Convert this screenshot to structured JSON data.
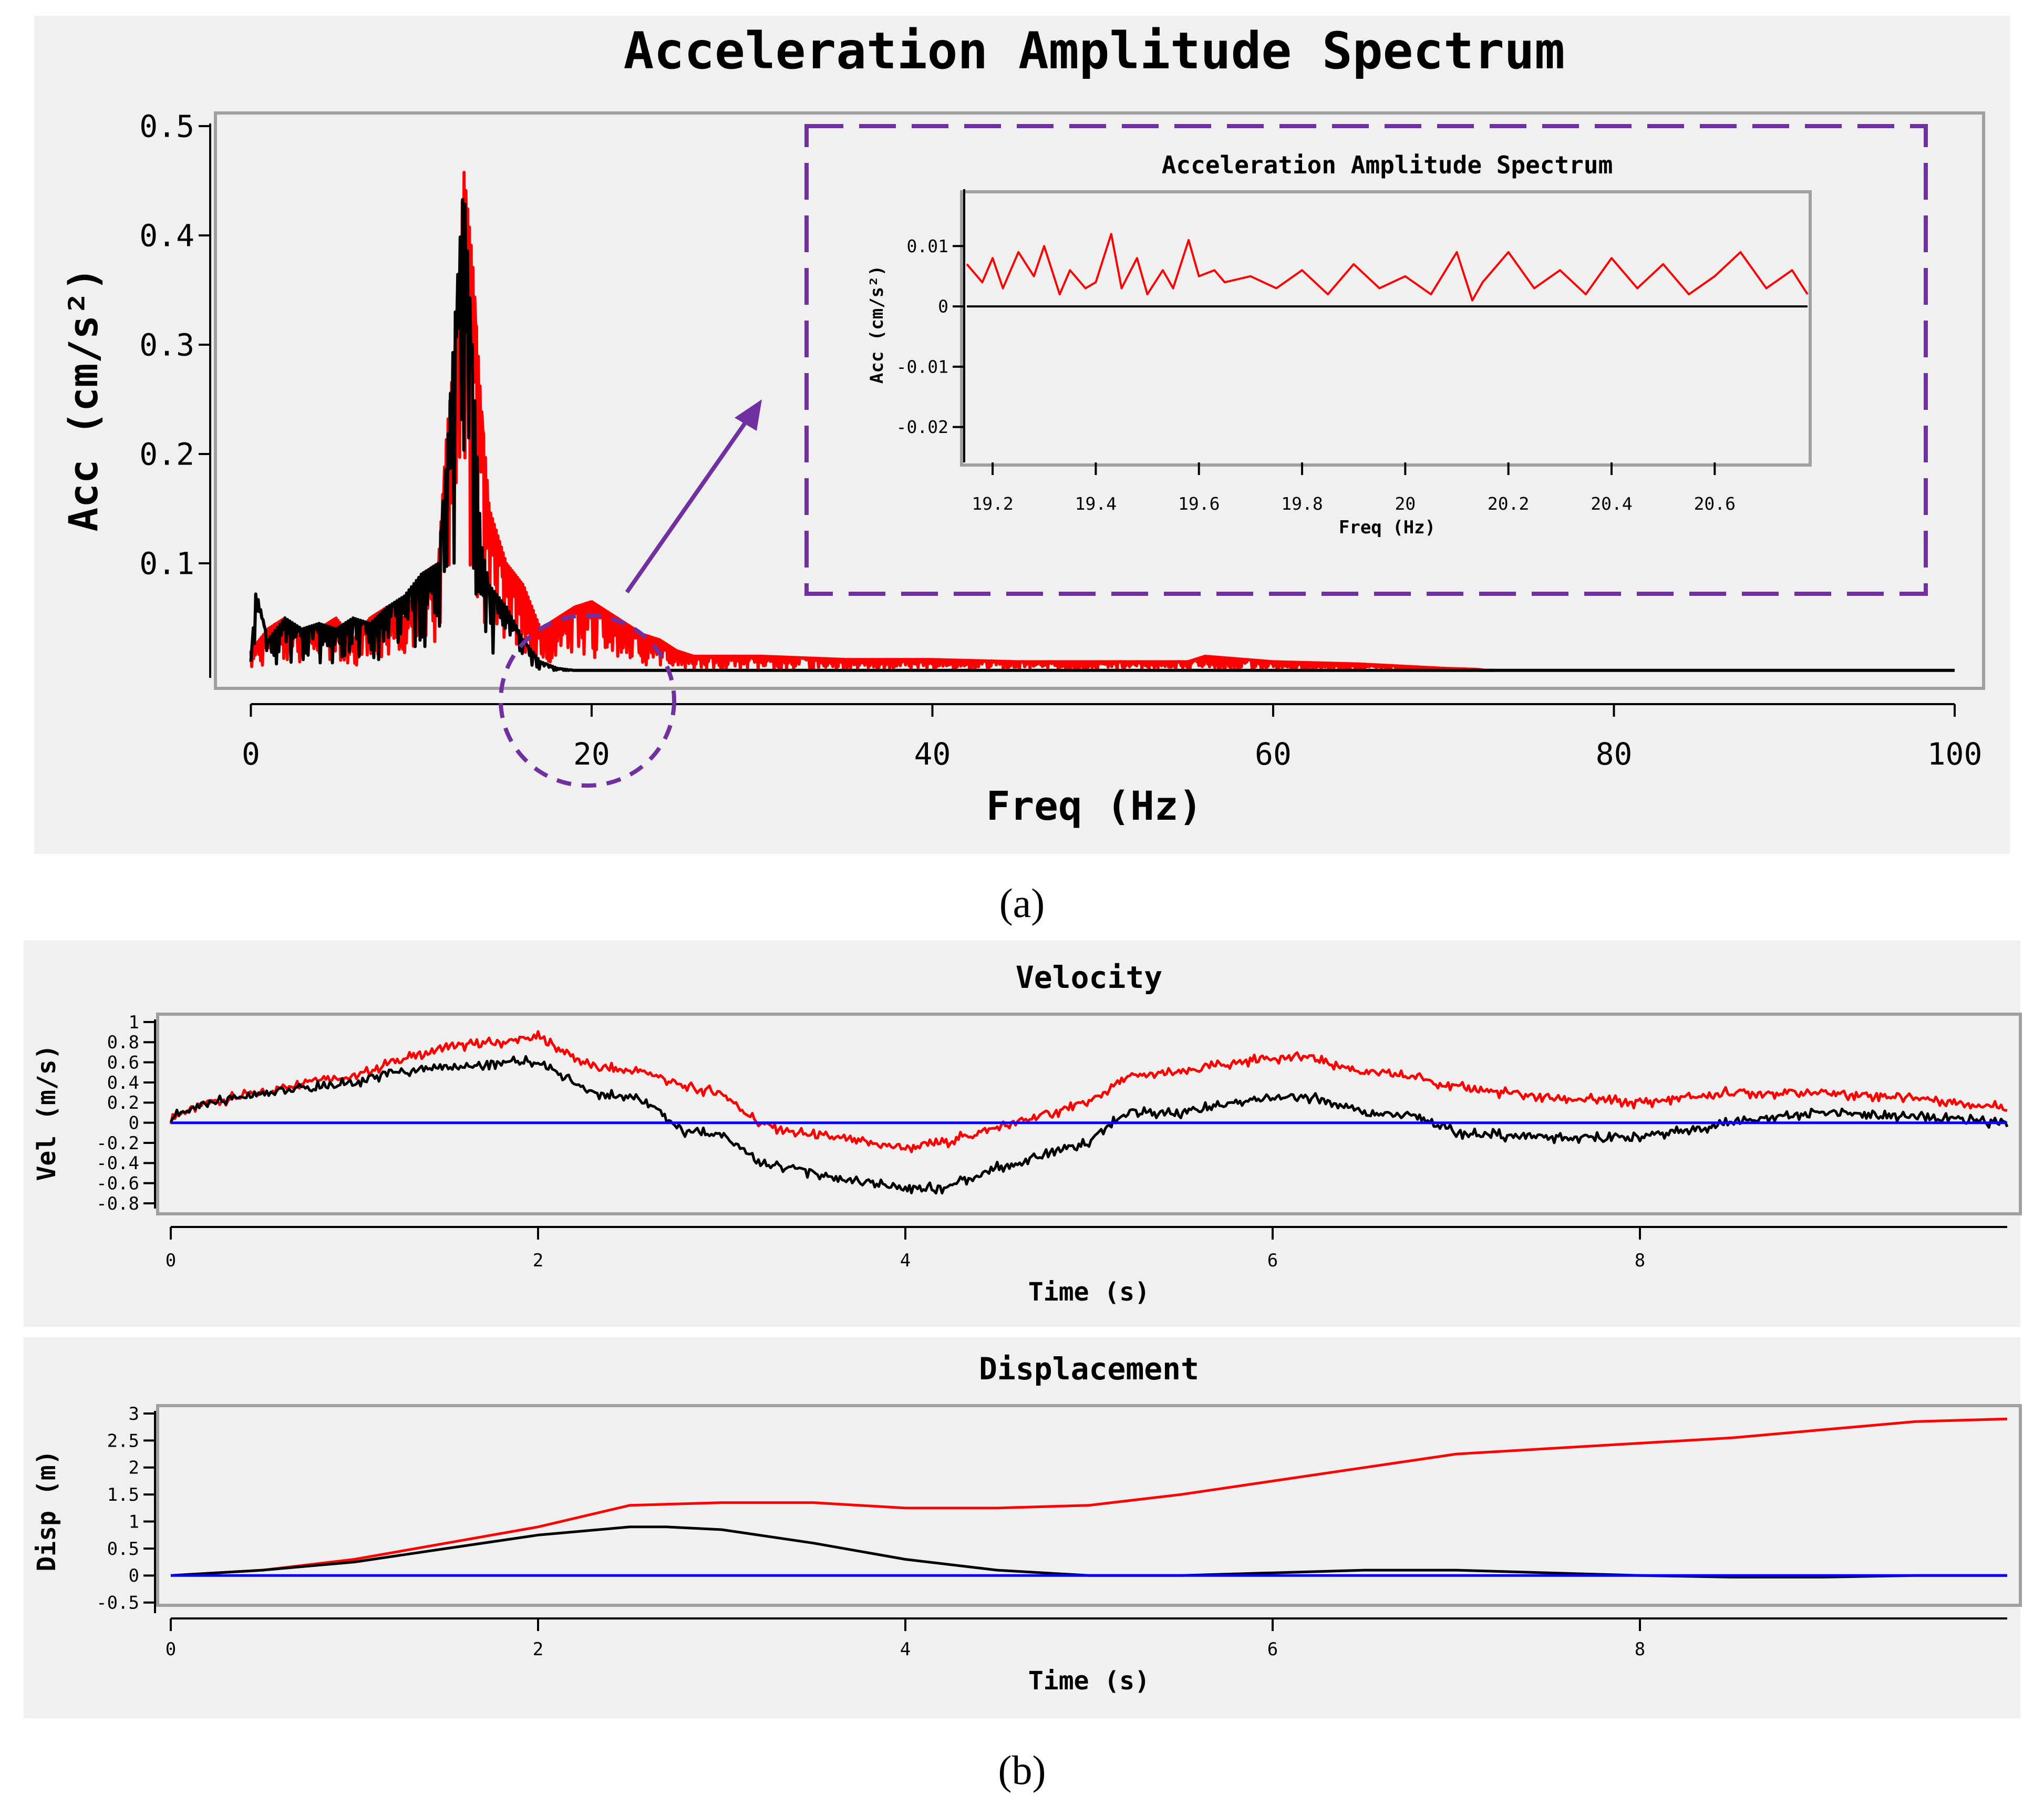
{
  "chart_data": [
    {
      "id": "spectrum",
      "type": "line",
      "title": "Acceleration Amplitude Spectrum",
      "xlabel": "Freq (Hz)",
      "ylabel": "Acc (cm/s²)",
      "xlim": [
        -1,
        100
      ],
      "ylim": [
        0,
        0.5
      ],
      "xticks": [
        "0",
        "20",
        "40",
        "60",
        "80",
        "100"
      ],
      "yticks": [
        "0.1",
        "0.2",
        "0.3",
        "0.4",
        "0.5"
      ],
      "series": [
        {
          "name": "red",
          "color": "#ff0000",
          "x": [
            0,
            1,
            2,
            3,
            4,
            5,
            6,
            7,
            8,
            9,
            10,
            11,
            11.5,
            12,
            12.5,
            13,
            13.5,
            14,
            15,
            16,
            17,
            18,
            19,
            20,
            21,
            22,
            23,
            24,
            25,
            26,
            30,
            35,
            40,
            45,
            50,
            55,
            56,
            60,
            65,
            70,
            72,
            73
          ],
          "y": [
            0.02,
            0.04,
            0.05,
            0.03,
            0.04,
            0.05,
            0.03,
            0.05,
            0.06,
            0.05,
            0.09,
            0.1,
            0.22,
            0.3,
            0.46,
            0.38,
            0.25,
            0.15,
            0.1,
            0.08,
            0.04,
            0.05,
            0.06,
            0.065,
            0.055,
            0.045,
            0.035,
            0.03,
            0.02,
            0.015,
            0.015,
            0.012,
            0.012,
            0.01,
            0.01,
            0.01,
            0.015,
            0.01,
            0.008,
            0.004,
            0.003,
            0.001
          ]
        },
        {
          "name": "black",
          "color": "#000000",
          "x": [
            0,
            0.3,
            1,
            2,
            3,
            4,
            5,
            6,
            7,
            8,
            9,
            10,
            11,
            11.5,
            12,
            12.5,
            13,
            13.5,
            14,
            15,
            16,
            17,
            18,
            19,
            20,
            25,
            30,
            40,
            50,
            60,
            70,
            80,
            90,
            100
          ],
          "y": [
            0.01,
            0.075,
            0.03,
            0.05,
            0.04,
            0.045,
            0.04,
            0.05,
            0.045,
            0.06,
            0.07,
            0.09,
            0.1,
            0.2,
            0.33,
            0.45,
            0.3,
            0.12,
            0.08,
            0.06,
            0.03,
            0.01,
            0.004,
            0.002,
            0.001,
            0.001,
            0.001,
            0.001,
            0.001,
            0.001,
            0.001,
            0.001,
            0.001,
            0.001
          ]
        }
      ]
    },
    {
      "id": "inset",
      "type": "line",
      "title": "Acceleration Amplitude Spectrum",
      "xlabel": "Freq (Hz)",
      "ylabel": "Acc (cm/s²)",
      "xlim": [
        19.15,
        20.78
      ],
      "ylim": [
        -0.025,
        0.019
      ],
      "xticks": [
        "19.2",
        "19.4",
        "19.6",
        "19.8",
        "20",
        "20.2",
        "20.4",
        "20.6"
      ],
      "yticks": [
        "0.01",
        "0",
        "-0.01",
        "-0.02"
      ],
      "series": [
        {
          "name": "red",
          "color": "#ff0000",
          "x": [
            19.15,
            19.18,
            19.2,
            19.22,
            19.25,
            19.28,
            19.3,
            19.33,
            19.35,
            19.38,
            19.4,
            19.43,
            19.45,
            19.48,
            19.5,
            19.53,
            19.55,
            19.58,
            19.6,
            19.63,
            19.65,
            19.7,
            19.75,
            19.8,
            19.85,
            19.9,
            19.95,
            20,
            20.05,
            20.1,
            20.13,
            20.15,
            20.2,
            20.25,
            20.3,
            20.35,
            20.4,
            20.45,
            20.5,
            20.55,
            20.6,
            20.65,
            20.7,
            20.75,
            20.78
          ],
          "y": [
            0.007,
            0.004,
            0.008,
            0.003,
            0.009,
            0.005,
            0.01,
            0.002,
            0.006,
            0.003,
            0.004,
            0.012,
            0.003,
            0.008,
            0.002,
            0.006,
            0.003,
            0.011,
            0.005,
            0.006,
            0.004,
            0.005,
            0.003,
            0.006,
            0.002,
            0.007,
            0.003,
            0.005,
            0.002,
            0.009,
            0.001,
            0.004,
            0.009,
            0.003,
            0.006,
            0.002,
            0.008,
            0.003,
            0.007,
            0.002,
            0.005,
            0.009,
            0.003,
            0.006,
            0.002
          ]
        },
        {
          "name": "black",
          "color": "#000000",
          "x": [
            19.15,
            20.78
          ],
          "y": [
            0,
            0
          ]
        }
      ]
    },
    {
      "id": "velocity",
      "type": "line",
      "title": "Velocity",
      "xlabel": "Time (s)",
      "ylabel": "Vel (m/s)",
      "xlim": [
        0,
        10
      ],
      "ylim": [
        -0.8,
        1
      ],
      "xticks": [
        "0",
        "2",
        "4",
        "6",
        "8"
      ],
      "yticks": [
        "1",
        "0.8",
        "0.6",
        "0.4",
        "0.2",
        "0",
        "-0.2",
        "-0.4",
        "-0.6",
        "-0.8"
      ],
      "series": [
        {
          "name": "red",
          "color": "#ff0000",
          "x": [
            0,
            0.2,
            0.5,
            0.8,
            1,
            1.2,
            1.5,
            1.8,
            2,
            2.3,
            2.6,
            2.8,
            3,
            3.2,
            3.4,
            3.6,
            3.8,
            4,
            4.2,
            4.5,
            4.8,
            5,
            5.2,
            5.5,
            5.8,
            6,
            6.2,
            6.5,
            6.8,
            7,
            7.5,
            8,
            8.5,
            9,
            9.5,
            10
          ],
          "y": [
            0.05,
            0.2,
            0.3,
            0.45,
            0.45,
            0.6,
            0.75,
            0.8,
            0.85,
            0.55,
            0.5,
            0.35,
            0.3,
            0.0,
            -0.1,
            -0.15,
            -0.2,
            -0.25,
            -0.2,
            -0.05,
            0.1,
            0.2,
            0.45,
            0.5,
            0.6,
            0.65,
            0.65,
            0.5,
            0.45,
            0.35,
            0.25,
            0.2,
            0.3,
            0.3,
            0.25,
            0.15
          ]
        },
        {
          "name": "black",
          "color": "#000000",
          "x": [
            0,
            0.2,
            0.5,
            0.8,
            1,
            1.2,
            1.5,
            1.8,
            2,
            2.3,
            2.6,
            2.8,
            3,
            3.2,
            3.4,
            3.6,
            3.8,
            4,
            4.2,
            4.5,
            4.8,
            5,
            5.2,
            5.5,
            5.8,
            6,
            6.2,
            6.5,
            6.8,
            7,
            7.5,
            8,
            8.5,
            9,
            9.5,
            10
          ],
          "y": [
            0.05,
            0.2,
            0.3,
            0.35,
            0.4,
            0.5,
            0.55,
            0.6,
            0.6,
            0.3,
            0.2,
            -0.1,
            -0.1,
            -0.4,
            -0.45,
            -0.55,
            -0.6,
            -0.65,
            -0.65,
            -0.45,
            -0.3,
            -0.2,
            0.1,
            0.1,
            0.2,
            0.25,
            0.25,
            0.1,
            0.05,
            -0.1,
            -0.15,
            -0.15,
            0.0,
            0.1,
            0.05,
            0.0
          ]
        },
        {
          "name": "blue",
          "color": "#0000ff",
          "x": [
            0,
            10
          ],
          "y": [
            0,
            0
          ]
        }
      ]
    },
    {
      "id": "displacement",
      "type": "line",
      "title": "Displacement",
      "xlabel": "Time (s)",
      "ylabel": "Disp (m)",
      "xlim": [
        0,
        10
      ],
      "ylim": [
        -0.6,
        3
      ],
      "xticks": [
        "0",
        "2",
        "4",
        "6",
        "8"
      ],
      "yticks": [
        "3",
        "2.5",
        "2",
        "1.5",
        "1",
        "0.5",
        "0",
        "-0.5"
      ],
      "series": [
        {
          "name": "red",
          "color": "#ff0000",
          "x": [
            0,
            0.5,
            1,
            1.5,
            2,
            2.5,
            3,
            3.5,
            4,
            4.5,
            5,
            5.5,
            6,
            6.5,
            7,
            7.5,
            8,
            8.5,
            9,
            9.5,
            10
          ],
          "y": [
            0,
            0.1,
            0.3,
            0.6,
            0.9,
            1.3,
            1.35,
            1.35,
            1.25,
            1.25,
            1.3,
            1.5,
            1.75,
            2.0,
            2.25,
            2.35,
            2.45,
            2.55,
            2.7,
            2.85,
            2.9
          ]
        },
        {
          "name": "black",
          "color": "#000000",
          "x": [
            0,
            0.5,
            1,
            1.5,
            2,
            2.5,
            2.7,
            3,
            3.5,
            4,
            4.5,
            5,
            5.5,
            6,
            6.5,
            7,
            7.5,
            8,
            8.5,
            9,
            9.5,
            10
          ],
          "y": [
            0,
            0.1,
            0.25,
            0.5,
            0.75,
            0.9,
            0.9,
            0.85,
            0.6,
            0.3,
            0.1,
            0.0,
            0.0,
            0.05,
            0.1,
            0.1,
            0.05,
            0.0,
            -0.03,
            -0.03,
            0.0,
            0.0
          ]
        },
        {
          "name": "blue",
          "color": "#0000ff",
          "x": [
            0,
            10
          ],
          "y": [
            0,
            0
          ]
        }
      ]
    }
  ],
  "captions": {
    "a": "(a)",
    "b": "(b)"
  },
  "colors": {
    "panel_bg": "#f0f0f0",
    "annotation": "#7030a0"
  }
}
